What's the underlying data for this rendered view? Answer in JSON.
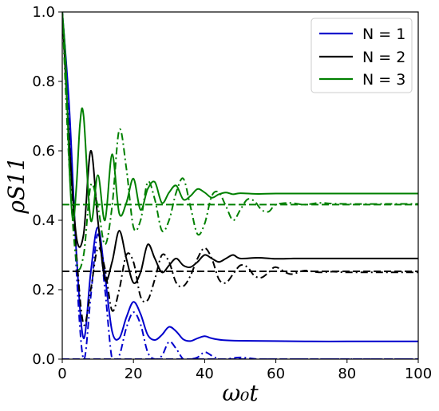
{
  "chart_data": {
    "type": "line",
    "xlabel": "ω₀t",
    "ylabel": "ρS11",
    "xlim": [
      0,
      100
    ],
    "ylim": [
      0.0,
      1.0
    ],
    "x_ticks": [
      "0",
      "20",
      "40",
      "60",
      "80",
      "100"
    ],
    "y_ticks": [
      "0.0",
      "0.2",
      "0.4",
      "0.6",
      "0.8",
      "1.0"
    ],
    "grid": false,
    "legend_position": "top-right",
    "legend": [
      "N = 1",
      "N = 2",
      "N = 3"
    ],
    "colors": {
      "N1": "#0000cc",
      "N2": "#000000",
      "N3": "#008000"
    },
    "series": [
      {
        "name": "N = 1",
        "color": "#0000cc",
        "style": "solid",
        "x": [
          0,
          2,
          4,
          6,
          8,
          10,
          12,
          14,
          16,
          18,
          20,
          22,
          24,
          26,
          28,
          30,
          32,
          34,
          36,
          38,
          40,
          42,
          45,
          50,
          60,
          70,
          80,
          90,
          100
        ],
        "y": [
          1.0,
          0.72,
          0.3,
          0.06,
          0.25,
          0.38,
          0.24,
          0.08,
          0.06,
          0.12,
          0.165,
          0.13,
          0.07,
          0.055,
          0.07,
          0.093,
          0.08,
          0.057,
          0.052,
          0.06,
          0.066,
          0.06,
          0.055,
          0.053,
          0.052,
          0.051,
          0.051,
          0.051,
          0.051
        ]
      },
      {
        "name": "",
        "color": "#0000cc",
        "style": "dashdot",
        "x": [
          0,
          2,
          4,
          6,
          8,
          10,
          12,
          14,
          16,
          18,
          20,
          22,
          24,
          26,
          28,
          30,
          32,
          34,
          36,
          38,
          40,
          42,
          44,
          46,
          50,
          55,
          60,
          70,
          80,
          90,
          100
        ],
        "y": [
          1.0,
          0.7,
          0.25,
          0.0,
          0.18,
          0.36,
          0.2,
          0.0,
          0.01,
          0.09,
          0.135,
          0.1,
          0.02,
          0.0,
          0.01,
          0.05,
          0.03,
          0.0,
          0.0,
          0.005,
          0.02,
          0.01,
          0.0,
          0.0,
          0.005,
          0.0,
          0.0,
          0.0,
          0.0,
          0.0,
          0.0
        ]
      },
      {
        "name": "",
        "color": "#0000cc",
        "style": "dashed",
        "x": [
          0,
          100
        ],
        "y": [
          0.0,
          0.0
        ]
      },
      {
        "name": "N = 2",
        "color": "#000000",
        "style": "solid",
        "x": [
          0,
          2,
          4,
          6,
          8,
          10,
          12,
          14,
          16,
          18,
          20,
          22,
          24,
          26,
          28,
          30,
          32,
          34,
          36,
          38,
          40,
          42,
          44,
          46,
          48,
          50,
          55,
          60,
          65,
          70,
          80,
          90,
          100
        ],
        "y": [
          1.0,
          0.62,
          0.35,
          0.36,
          0.6,
          0.4,
          0.23,
          0.28,
          0.37,
          0.29,
          0.22,
          0.25,
          0.33,
          0.29,
          0.25,
          0.27,
          0.29,
          0.27,
          0.265,
          0.28,
          0.3,
          0.29,
          0.28,
          0.29,
          0.3,
          0.29,
          0.292,
          0.289,
          0.29,
          0.29,
          0.29,
          0.29,
          0.29
        ]
      },
      {
        "name": "",
        "color": "#000000",
        "style": "dashdot",
        "x": [
          0,
          2,
          4,
          6,
          8,
          10,
          12,
          14,
          16,
          18,
          20,
          22,
          24,
          26,
          28,
          30,
          32,
          34,
          36,
          38,
          40,
          42,
          44,
          46,
          48,
          50,
          52,
          54,
          56,
          58,
          60,
          64,
          68,
          72,
          76,
          80,
          90,
          100
        ],
        "y": [
          1.0,
          0.62,
          0.3,
          0.1,
          0.2,
          0.32,
          0.26,
          0.14,
          0.2,
          0.3,
          0.28,
          0.18,
          0.17,
          0.23,
          0.3,
          0.28,
          0.22,
          0.21,
          0.24,
          0.29,
          0.32,
          0.29,
          0.23,
          0.22,
          0.245,
          0.27,
          0.265,
          0.24,
          0.235,
          0.25,
          0.265,
          0.245,
          0.255,
          0.25,
          0.252,
          0.25,
          0.25,
          0.25
        ]
      },
      {
        "name": "",
        "color": "#000000",
        "style": "dashed",
        "x": [
          0,
          100
        ],
        "y": [
          0.253,
          0.253
        ]
      },
      {
        "name": "N = 3",
        "color": "#008000",
        "style": "solid",
        "x": [
          0,
          1,
          2,
          3,
          4,
          5,
          6,
          8,
          10,
          12,
          14,
          16,
          18,
          20,
          22,
          24,
          26,
          28,
          30,
          32,
          34,
          36,
          38,
          40,
          42,
          44,
          46,
          48,
          50,
          55,
          60,
          70,
          80,
          90,
          100
        ],
        "y": [
          1.0,
          0.85,
          0.55,
          0.4,
          0.5,
          0.68,
          0.7,
          0.4,
          0.53,
          0.4,
          0.59,
          0.42,
          0.45,
          0.52,
          0.43,
          0.49,
          0.51,
          0.45,
          0.48,
          0.5,
          0.46,
          0.47,
          0.49,
          0.48,
          0.465,
          0.475,
          0.48,
          0.475,
          0.478,
          0.476,
          0.477,
          0.477,
          0.477,
          0.477,
          0.477
        ]
      },
      {
        "name": "",
        "color": "#008000",
        "style": "dashdot",
        "x": [
          0,
          2,
          4,
          6,
          8,
          10,
          12,
          14,
          16,
          18,
          20,
          22,
          24,
          26,
          28,
          30,
          32,
          34,
          36,
          38,
          40,
          42,
          44,
          46,
          48,
          50,
          52,
          54,
          56,
          58,
          60,
          64,
          68,
          72,
          76,
          80,
          90,
          100
        ],
        "y": [
          1.0,
          0.55,
          0.28,
          0.3,
          0.5,
          0.44,
          0.33,
          0.44,
          0.66,
          0.55,
          0.38,
          0.4,
          0.51,
          0.46,
          0.37,
          0.4,
          0.48,
          0.52,
          0.44,
          0.36,
          0.39,
          0.47,
          0.48,
          0.44,
          0.4,
          0.43,
          0.46,
          0.455,
          0.43,
          0.425,
          0.445,
          0.45,
          0.445,
          0.45,
          0.448,
          0.447,
          0.447,
          0.447
        ]
      },
      {
        "name": "",
        "color": "#008000",
        "style": "dashed",
        "x": [
          0,
          100
        ],
        "y": [
          0.445,
          0.445
        ]
      }
    ]
  }
}
